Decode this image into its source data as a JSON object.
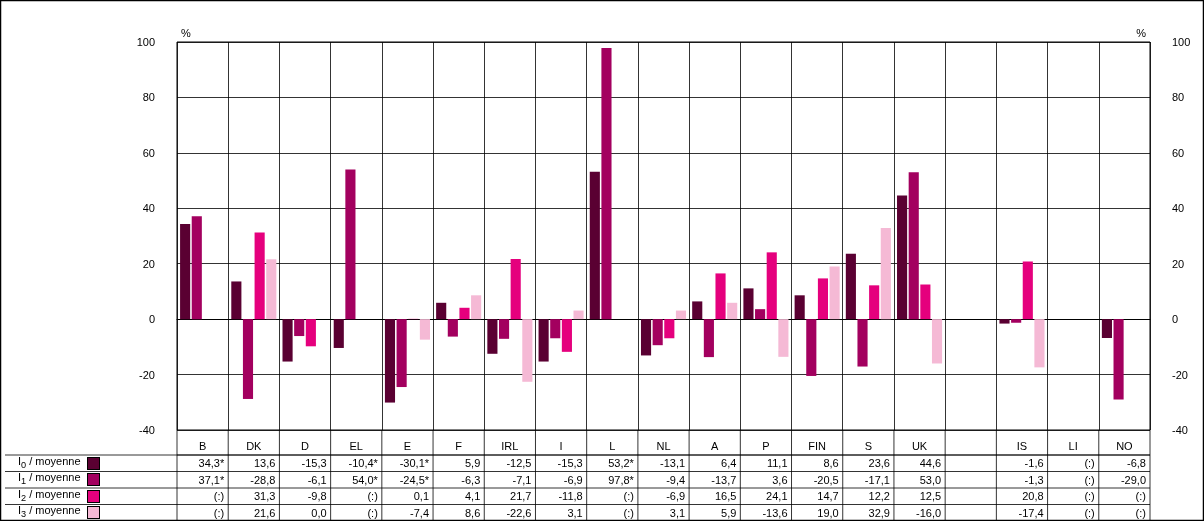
{
  "chart_data": {
    "type": "bar",
    "categories": [
      "B",
      "DK",
      "D",
      "EL",
      "E",
      "F",
      "IRL",
      "I",
      "L",
      "NL",
      "A",
      "P",
      "FIN",
      "S",
      "UK",
      null,
      "IS",
      "LI",
      "NO"
    ],
    "series": [
      {
        "name": "I$_{0}$ / moyenne",
        "color": "#5a0032",
        "values": [
          34.3,
          13.6,
          -15.3,
          -10.4,
          -30.1,
          5.9,
          -12.5,
          -15.3,
          53.2,
          -13.1,
          6.4,
          11.1,
          8.6,
          23.6,
          44.6,
          null,
          -1.6,
          null,
          -6.8
        ],
        "value_labels": [
          "34,3*",
          "13,6",
          "-15,3",
          "-10,4*",
          "-30,1*",
          "5,9",
          "-12,5",
          "-15,3",
          "53,2*",
          "-13,1",
          "6,4",
          "11,1",
          "8,6",
          "23,6",
          "44,6",
          null,
          "-1,6",
          "(:)",
          "-6,8"
        ]
      },
      {
        "name": "I$_{1}$ / moyenne",
        "color": "#a3005f",
        "values": [
          37.1,
          -28.8,
          -6.1,
          54.0,
          -24.5,
          -6.3,
          -7.1,
          -6.9,
          97.8,
          -9.4,
          -13.7,
          3.6,
          -20.5,
          -17.1,
          53.0,
          null,
          -1.3,
          null,
          -29.0
        ],
        "value_labels": [
          "37,1*",
          "-28,8",
          "-6,1",
          "54,0*",
          "-24,5*",
          "-6,3",
          "-7,1",
          "-6,9",
          "97,8*",
          "-9,4",
          "-13,7",
          "3,6",
          "-20,5",
          "-17,1",
          "53,0",
          null,
          "-1,3",
          "(:)",
          "-29,0"
        ]
      },
      {
        "name": "I$_{2}$ / moyenne",
        "color": "#e5007d",
        "values": [
          null,
          31.3,
          -9.8,
          null,
          0.1,
          4.1,
          21.7,
          -11.8,
          null,
          -6.9,
          16.5,
          24.1,
          14.7,
          12.2,
          12.5,
          null,
          20.8,
          null,
          null
        ],
        "value_labels": [
          "(:)",
          "31,3",
          "-9,8",
          "(:)",
          "0,1",
          "4,1",
          "21,7",
          "-11,8",
          "(:)",
          "-6,9",
          "16,5",
          "24,1",
          "14,7",
          "12,2",
          "12,5",
          null,
          "20,8",
          "(:)",
          "(:)"
        ]
      },
      {
        "name": "I$_{3}$ / moyenne",
        "color": "#f5b9d5",
        "values": [
          null,
          21.6,
          0.0,
          null,
          -7.4,
          8.6,
          -22.6,
          3.1,
          null,
          3.1,
          5.9,
          -13.6,
          19.0,
          32.9,
          -16.0,
          null,
          -17.4,
          null,
          null
        ],
        "value_labels": [
          "(:)",
          "21,6",
          "0,0",
          "(:)",
          "-7,4",
          "8,6",
          "-22,6",
          "3,1",
          "(:)",
          "3,1",
          "5,9",
          "-13,6",
          "19,0",
          "32,9",
          "-16,0",
          null,
          "-17,4",
          "(:)",
          "(:)"
        ]
      }
    ],
    "ylabel": "%",
    "y2label": "%",
    "ylim": [
      -40,
      100
    ],
    "yticks": [
      -40,
      -20,
      0,
      20,
      40,
      60,
      80,
      100
    ],
    "y2lim": [
      -40,
      100
    ],
    "y2ticks": [
      -40,
      -20,
      0,
      20,
      40,
      60,
      80,
      100
    ],
    "grid": true,
    "legend": "bottom left"
  }
}
